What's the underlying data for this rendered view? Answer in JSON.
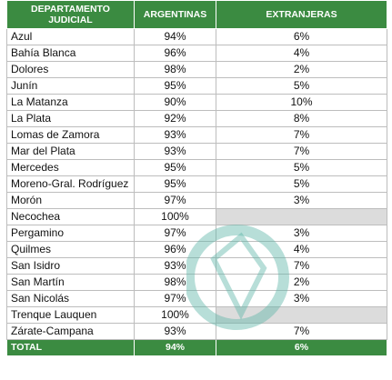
{
  "table": {
    "header": [
      "DEPARTAMENTO JUDICIAL",
      "ARGENTINAS",
      "EXTRANJERAS"
    ],
    "rows": [
      [
        "Azul",
        "94%",
        "6%"
      ],
      [
        "Bahía Blanca",
        "96%",
        "4%"
      ],
      [
        "Dolores",
        "98%",
        "2%"
      ],
      [
        "Junín",
        "95%",
        "5%"
      ],
      [
        "La Matanza",
        "90%",
        "10%"
      ],
      [
        "La Plata",
        "92%",
        "8%"
      ],
      [
        "Lomas de Zamora",
        "93%",
        "7%"
      ],
      [
        "Mar del Plata",
        "93%",
        "7%"
      ],
      [
        "Mercedes",
        "95%",
        "5%"
      ],
      [
        "Moreno-Gral. Rodríguez",
        "95%",
        "5%"
      ],
      [
        "Morón",
        "97%",
        "3%"
      ],
      [
        "Necochea",
        "100%",
        null
      ],
      [
        "Pergamino",
        "97%",
        "3%"
      ],
      [
        "Quilmes",
        "96%",
        "4%"
      ],
      [
        "San Isidro",
        "93%",
        "7%"
      ],
      [
        "San Martín",
        "98%",
        "2%"
      ],
      [
        "San Nicolás",
        "97%",
        "3%"
      ],
      [
        "Trenque Lauquen",
        "100%",
        null
      ],
      [
        "Zárate-Campana",
        "93%",
        "7%"
      ]
    ],
    "total": [
      "TOTAL",
      "94%",
      "6%"
    ]
  }
}
